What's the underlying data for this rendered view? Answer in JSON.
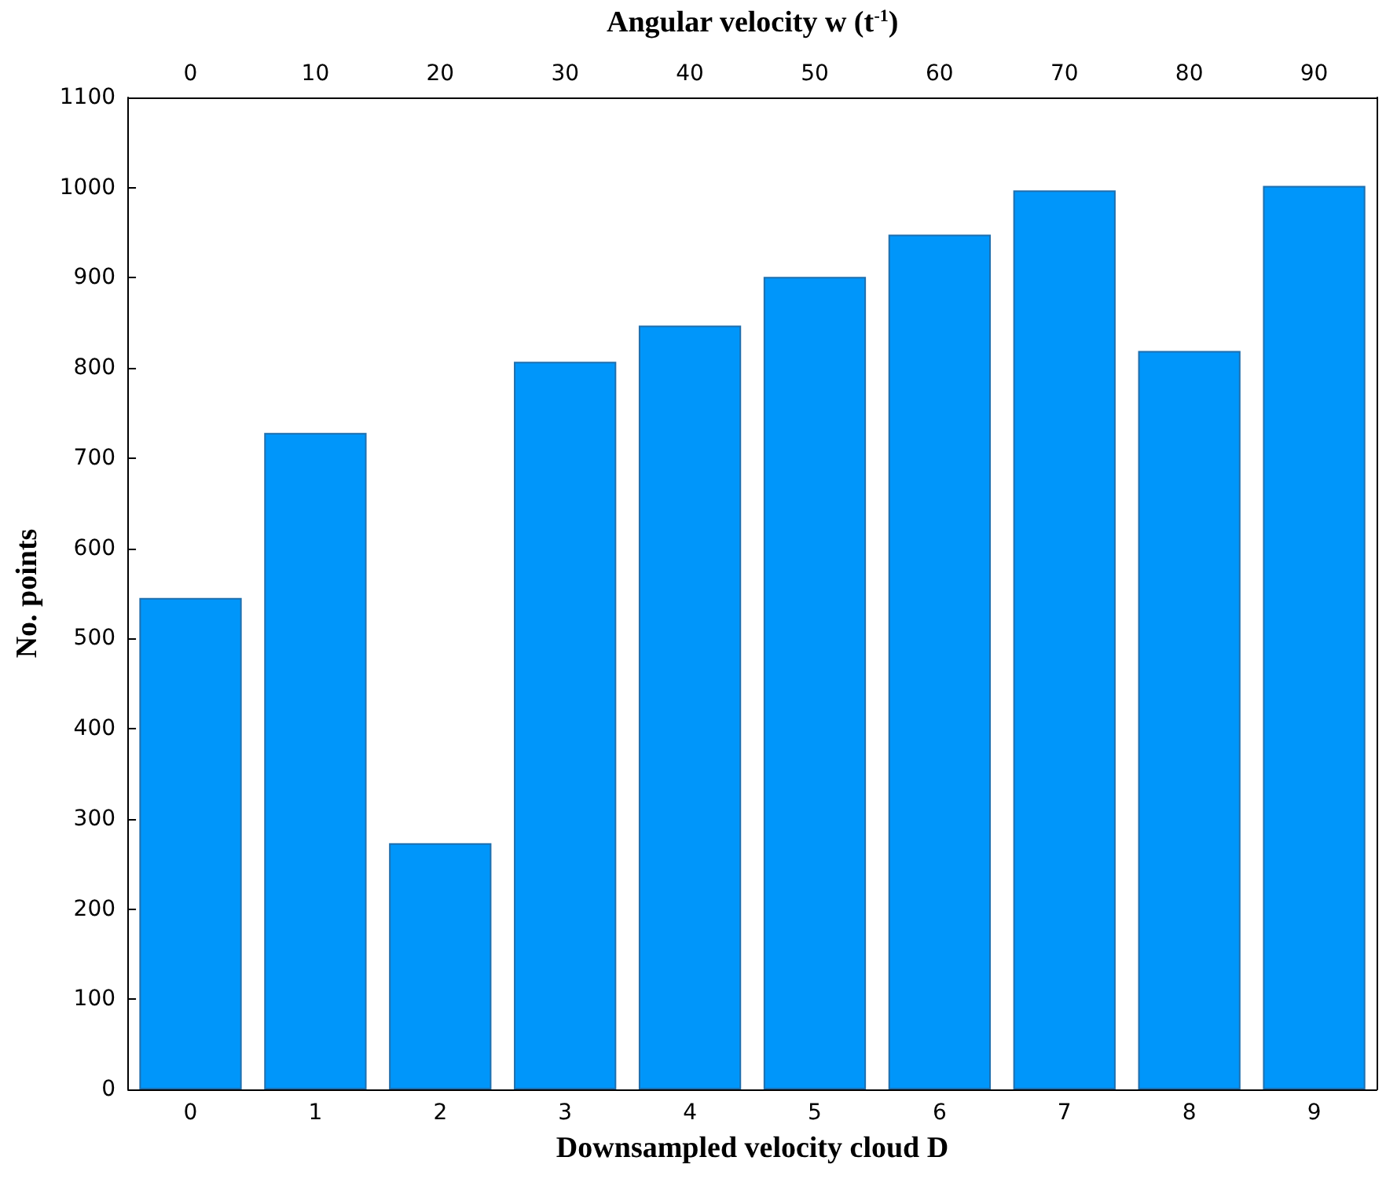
{
  "chart_data": {
    "type": "bar",
    "xlabel": "Downsampled velocity cloud D",
    "ylabel": "No. points",
    "x2label": "Angular velocity w (t$^{-1}$)",
    "categories": [
      "0",
      "1",
      "2",
      "3",
      "4",
      "5",
      "6",
      "7",
      "8",
      "9"
    ],
    "values": [
      545,
      728,
      273,
      807,
      847,
      901,
      948,
      997,
      819,
      1002
    ],
    "color": "#0096fa",
    "ylim": [
      0,
      1100
    ],
    "yticks": [
      0,
      100,
      200,
      300,
      400,
      500,
      600,
      700,
      800,
      900,
      1000,
      1100
    ],
    "x2lim": [
      -5,
      95
    ],
    "x2ticks": [
      0,
      10,
      20,
      30,
      40,
      50,
      60,
      70,
      80,
      90
    ],
    "grid": false
  }
}
